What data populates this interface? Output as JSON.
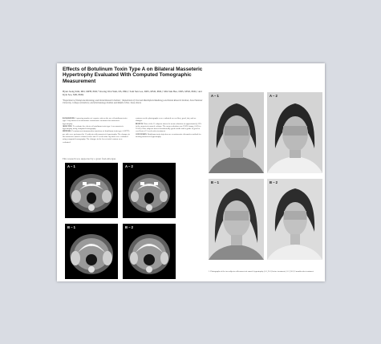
{
  "article": {
    "title": "Effects of Botulinum Toxin Type A on Bilateral Masseteric Hypertrophy Evaluated With Computed Tomographic Measurement",
    "authors": "Hyun Jeong Kim, MD, MPH, PhD,* Kwang Won Yum, DS, PhD,† Sam Sun Lee, DDS, MSD, PhD,† Min Suk Heo, DDS, MSD, PhD,† and Kyle Seo, MD, PhD‡",
    "affiliations": "*Department of Dental Anesthesiology and Dental Research Institute; †Department of Oral and Maxillofacial Radiology and Dental Research Institute, Seoul National University, College of Dentistry; and ‡Dermatology Institute and Modelo Clinic, Seoul, Korea",
    "abstract_col1": [
      {
        "kw": "background.",
        "text": "A growing number of reports exist on the use of botulinum toxin type A injections as an alternative noninvasive treatment for masseteric hypertrophy."
      },
      {
        "kw": "objective.",
        "text": "To evaluate the effects of botulinum toxin type A on masseteric hypertrophy using computed tomography."
      },
      {
        "kw": "methods.",
        "text": "Percutaneous intramuscular injections of botulinum toxin type A (BTX) per side were performed in 11 subjects with masseteric hypertrophy. The changes in the masseteric muscle volume before and 12 weeks after injection were evaluated using computed tomography. The changes in the lower facial contour were evaluated."
      }
    ],
    "abstract_col2": [
      {
        "kw": "",
        "text": "contours on the photographs were evaluated as excellent, good, fair, and no changes."
      },
      {
        "kw": "results.",
        "text": "Nine of the 11 subjects showed a mean reduction of approximately 22% in the masseteric muscle volume. The mean reduction was 19.8% (range, 6.4% to 32.4%). Nine subjects showed aesthetically good results with a grade of good or excellent at 12 weeks after treatment."
      },
      {
        "kw": "conclusion.",
        "text": "Botulinum toxin injection are a noninvasive alternative method for treating masseteric hypertrophy."
      }
    ],
    "banner": "This research was supported by a grant from Allergan.",
    "ct_labels": [
      "A – 1",
      "A – 2",
      "B – 1",
      "B – 2"
    ],
    "photo_labels": [
      "A – 1",
      "A – 2",
      "B – 1",
      "B – 2"
    ],
    "caption": "1. Photographs of the two subjects with masseteric muscle hypertrophy (A-1, B-1) before treatment; (A-2, B-2) 3 months after treatment."
  }
}
